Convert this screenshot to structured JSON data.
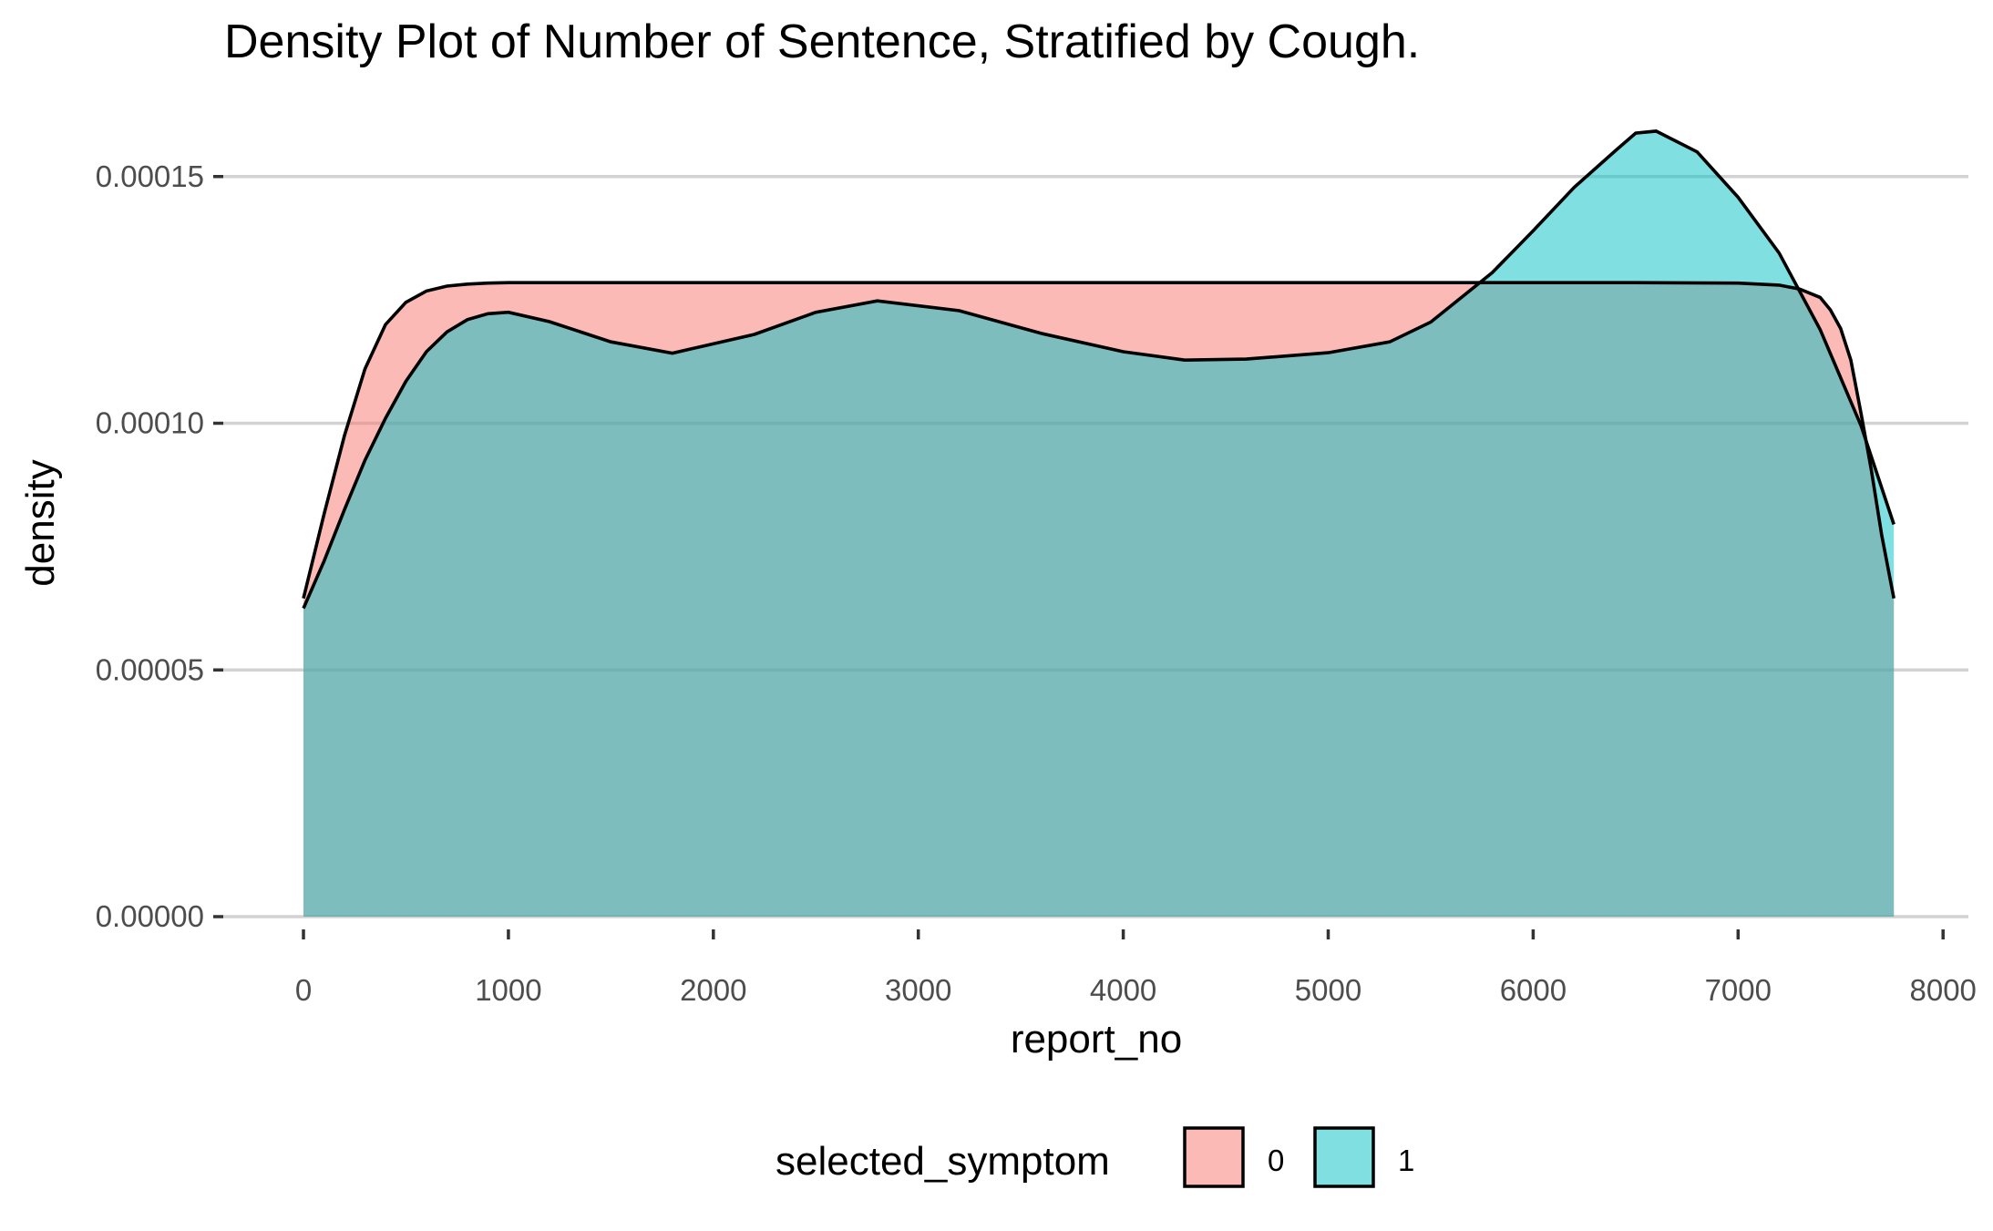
{
  "chart_data": {
    "type": "area",
    "title": "Density Plot of Number of Sentence, Stratified by Cough.",
    "xlabel": "report_no",
    "ylabel": "density",
    "xlim": [
      -400,
      8100
    ],
    "ylim": [
      0,
      0.0001625
    ],
    "x_ticks": [
      0,
      1000,
      2000,
      3000,
      4000,
      5000,
      6000,
      7000,
      8000
    ],
    "x_tick_labels": [
      "0",
      "1000",
      "2000",
      "3000",
      "4000",
      "5000",
      "6000",
      "7000",
      "8000"
    ],
    "y_ticks": [
      0,
      5e-05,
      0.0001,
      0.00015
    ],
    "y_tick_labels": [
      "0.00000",
      "0.00005",
      "0.00010",
      "0.00015"
    ],
    "grid": "horizontal major",
    "fill_opacity": 0.5,
    "legend": {
      "title": "selected_symptom",
      "position": "bottom",
      "entries": [
        "0",
        "1"
      ]
    },
    "series": [
      {
        "name": "0",
        "color": "#F8766D",
        "x": [
          0,
          100,
          200,
          300,
          400,
          500,
          600,
          700,
          800,
          900,
          1000,
          1200,
          1500,
          2000,
          3000,
          4000,
          5000,
          6000,
          6500,
          7000,
          7200,
          7300,
          7400,
          7450,
          7500,
          7550,
          7600,
          7650,
          7700,
          7760
        ],
        "y": [
          6.45e-05,
          8.15e-05,
          9.75e-05,
          0.000111,
          0.00012,
          0.0001245,
          0.0001268,
          0.0001278,
          0.0001282,
          0.0001284,
          0.0001285,
          0.0001285,
          0.0001285,
          0.0001285,
          0.0001285,
          0.0001285,
          0.0001285,
          0.0001285,
          0.0001285,
          0.0001284,
          0.000128,
          0.0001272,
          0.0001255,
          0.000123,
          0.0001192,
          0.0001128,
          0.000102,
          9.05e-05,
          7.75e-05,
          6.45e-05
        ]
      },
      {
        "name": "1",
        "color": "#00BFC4",
        "x": [
          0,
          100,
          200,
          300,
          400,
          500,
          600,
          700,
          800,
          900,
          1000,
          1200,
          1500,
          1800,
          2200,
          2500,
          2800,
          3200,
          3600,
          4000,
          4300,
          4600,
          5000,
          5300,
          5500,
          5800,
          6000,
          6200,
          6400,
          6500,
          6600,
          6800,
          7000,
          7200,
          7400,
          7600,
          7760
        ],
        "y": [
          6.25e-05,
          7.2e-05,
          8.25e-05,
          9.25e-05,
          0.000101,
          0.0001085,
          0.0001145,
          0.0001185,
          0.000121,
          0.0001222,
          0.0001225,
          0.0001206,
          0.0001165,
          0.0001142,
          0.000118,
          0.0001225,
          0.0001248,
          0.0001228,
          0.0001182,
          0.0001145,
          0.0001128,
          0.000113,
          0.0001143,
          0.0001165,
          0.0001205,
          0.0001305,
          0.000139,
          0.0001478,
          0.0001552,
          0.0001588,
          0.0001592,
          0.000155,
          0.0001458,
          0.0001345,
          0.000119,
          9.95e-05,
          7.95e-05
        ]
      }
    ]
  }
}
